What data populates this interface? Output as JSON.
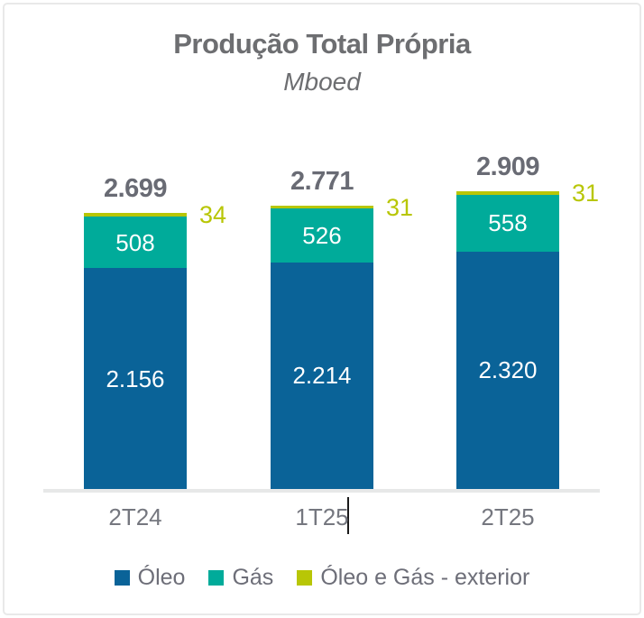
{
  "frame": {
    "background": "#ffffff",
    "border_color": "#e9e9e9"
  },
  "chart_data": {
    "type": "bar",
    "stacked": true,
    "title": "Produção Total Própria",
    "subtitle": "Mboed",
    "categories": [
      "2T24",
      "1T25",
      "2T25"
    ],
    "series": [
      {
        "name": "Óleo",
        "color": "#0a6398",
        "values": [
          2156,
          2214,
          2320
        ],
        "value_labels": [
          "2.156",
          "2.214",
          "2.320"
        ],
        "label_style": "inside-white"
      },
      {
        "name": "Gás",
        "color": "#00ab9a",
        "values": [
          508,
          526,
          558
        ],
        "value_labels": [
          "508",
          "526",
          "558"
        ],
        "label_style": "inside-white"
      },
      {
        "name": "Óleo e Gás - exterior",
        "color": "#b8c606",
        "values": [
          34,
          31,
          31
        ],
        "value_labels": [
          "34",
          "31",
          "31"
        ],
        "label_style": "outside-right"
      }
    ],
    "totals": {
      "values": [
        2699,
        2771,
        2909
      ],
      "labels": [
        "2.699",
        "2.771",
        "2.909"
      ],
      "color": "#696b74"
    },
    "axis": {
      "baseline_color": "#e7e8e8",
      "tick_label_color": "#75777f"
    },
    "legend_position": "bottom",
    "grid": false,
    "ylim": [
      0,
      3000
    ]
  },
  "text_cursor": {
    "present": true,
    "after_category": "1T25"
  }
}
